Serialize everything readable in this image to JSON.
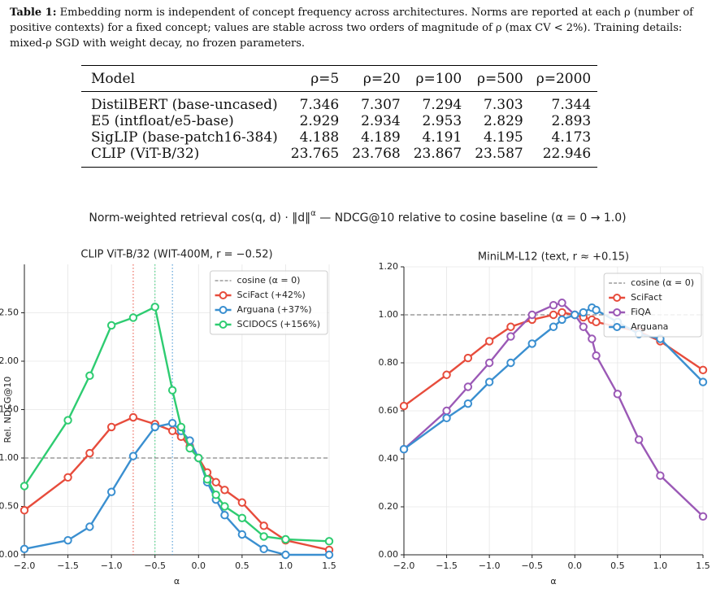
{
  "caption": {
    "label": "Table 1:",
    "text": "Embedding norm is independent of concept frequency across architectures. Norms are reported at each ρ (number of positive contexts) for a fixed concept; values are stable across two orders of magnitude of ρ (max CV < 2%). Training details: mixed-ρ SGD with weight decay, no frozen parameters."
  },
  "table": {
    "columns": [
      "Model",
      "ρ=5",
      "ρ=20",
      "ρ=100",
      "ρ=500",
      "ρ=2000"
    ],
    "rows": [
      [
        "DistilBERT (base-uncased)",
        7.346,
        7.307,
        7.294,
        7.303,
        7.344
      ],
      [
        "E5 (intfloat/e5-base)",
        2.929,
        2.934,
        2.953,
        2.829,
        2.893
      ],
      [
        "SigLIP (base-patch16-384)",
        4.188,
        4.189,
        4.191,
        4.195,
        4.173
      ],
      [
        "CLIP (ViT-B/32)",
        23.765,
        23.768,
        23.867,
        23.587,
        22.946
      ]
    ]
  },
  "figure": {
    "suptitle": [
      "Norm-weighted retrieval cos(q, d) · ‖d‖",
      "α",
      "  —  NDCG@10 relative to cosine baseline (α = 0 → 1.0)"
    ]
  },
  "chart_data": [
    {
      "type": "line",
      "title": "CLIP ViT-B/32  (WIT-400M,  r = −0.52)",
      "xlabel": "α",
      "ylabel": "Rel. NDCG@10",
      "x": [
        -2,
        -1.5,
        -1.25,
        -1,
        -0.75,
        -0.5,
        -0.3,
        -0.2,
        -0.1,
        0,
        0.1,
        0.2,
        0.3,
        0.5,
        0.75,
        1.0,
        1.5
      ],
      "series": [
        {
          "name": "SciFact  (+42%)",
          "color": "#e74c3c",
          "values": [
            0.46,
            0.8,
            1.05,
            1.32,
            1.42,
            1.35,
            1.28,
            1.22,
            1.12,
            1.0,
            0.85,
            0.75,
            0.67,
            0.54,
            0.3,
            0.15,
            0.05
          ]
        },
        {
          "name": "Arguana  (+37%)",
          "color": "#3a8fd0",
          "values": [
            0.06,
            0.15,
            0.29,
            0.65,
            1.02,
            1.32,
            1.36,
            1.28,
            1.18,
            1.0,
            0.75,
            0.57,
            0.41,
            0.21,
            0.06,
            0.0,
            0.0
          ]
        },
        {
          "name": "SCIDOCS  (+156%)",
          "color": "#2ecc71",
          "values": [
            0.71,
            1.39,
            1.85,
            2.37,
            2.45,
            2.56,
            1.7,
            1.32,
            1.1,
            1.0,
            0.78,
            0.62,
            0.5,
            0.38,
            0.19,
            0.16,
            0.14
          ]
        }
      ],
      "vlines": [
        {
          "x": -0.75,
          "color": "#e74c3c"
        },
        {
          "x": -0.5,
          "color": "#2ecc71"
        },
        {
          "x": -0.3,
          "color": "#3a8fd0"
        }
      ],
      "baseline": {
        "value": 1,
        "label": "cosine  (α = 0)",
        "color": "#888888"
      },
      "xlim": [
        -2,
        1.5
      ],
      "ylim": [
        0,
        3.0
      ],
      "xticks": [
        {
          "value": -2,
          "label": "−2.0"
        },
        {
          "value": -1.5,
          "label": "−1.5"
        },
        {
          "value": -1,
          "label": "−1.0"
        },
        {
          "value": -0.5,
          "label": "−0.5"
        },
        {
          "value": 0,
          "label": "0.0"
        },
        0.5,
        {
          "value": 1,
          "label": "1.0"
        },
        1.5
      ],
      "yticks": [
        {
          "value": 0,
          "label": "0.00"
        },
        {
          "value": 0.5,
          "label": "0.50"
        },
        {
          "value": 1,
          "label": "1.00"
        },
        {
          "value": 1.5,
          "label": "1.50"
        },
        {
          "value": 2,
          "label": "2.00"
        },
        {
          "value": 2.5,
          "label": "2.50"
        }
      ],
      "grid": true,
      "legend": "upper right"
    },
    {
      "type": "line",
      "title": "MiniLM-L12  (text,  r ≈ +0.15)",
      "xlabel": "α",
      "x": [
        -2,
        -1.5,
        -1.25,
        -1,
        -0.75,
        -0.5,
        -0.25,
        -0.15,
        0,
        0.1,
        0.2,
        0.25,
        0.5,
        0.75,
        1.0,
        1.5
      ],
      "series": [
        {
          "name": "SciFact",
          "color": "#e74c3c",
          "values": [
            0.62,
            0.75,
            0.82,
            0.89,
            0.95,
            0.98,
            1.0,
            1.01,
            1.0,
            0.99,
            0.98,
            0.97,
            0.95,
            0.93,
            0.89,
            0.77
          ]
        },
        {
          "name": "FiQA",
          "color": "#9b59b6",
          "values": [
            0.44,
            0.6,
            0.7,
            0.8,
            0.91,
            1.0,
            1.04,
            1.05,
            1.0,
            0.95,
            0.9,
            0.83,
            0.67,
            0.48,
            0.33,
            0.16
          ]
        },
        {
          "name": "Arguana",
          "color": "#3a8fd0",
          "values": [
            0.44,
            0.57,
            0.63,
            0.72,
            0.8,
            0.88,
            0.95,
            0.98,
            1.0,
            1.01,
            1.03,
            1.02,
            0.97,
            0.92,
            0.9,
            0.72
          ]
        }
      ],
      "baseline": {
        "value": 1,
        "label": "cosine  (α = 0)",
        "color": "#888888"
      },
      "xlim": [
        -2,
        1.5
      ],
      "ylim": [
        0,
        1.2
      ],
      "xticks": [
        {
          "value": -2,
          "label": "−2.0"
        },
        {
          "value": -1.5,
          "label": "−1.5"
        },
        {
          "value": -1,
          "label": "−1.0"
        },
        {
          "value": -0.5,
          "label": "−0.5"
        },
        {
          "value": 0,
          "label": "0.0"
        },
        0.5,
        {
          "value": 1,
          "label": "1.0"
        },
        1.5
      ],
      "yticks": [
        {
          "value": 0,
          "label": "0.00"
        },
        {
          "value": 0.2,
          "label": "0.20"
        },
        {
          "value": 0.4,
          "label": "0.40"
        },
        {
          "value": 0.6,
          "label": "0.60"
        },
        {
          "value": 0.8,
          "label": "0.80"
        },
        {
          "value": 1,
          "label": "1.00"
        },
        {
          "value": 1.2,
          "label": "1.20"
        }
      ],
      "grid": true,
      "legend": "upper right"
    }
  ]
}
